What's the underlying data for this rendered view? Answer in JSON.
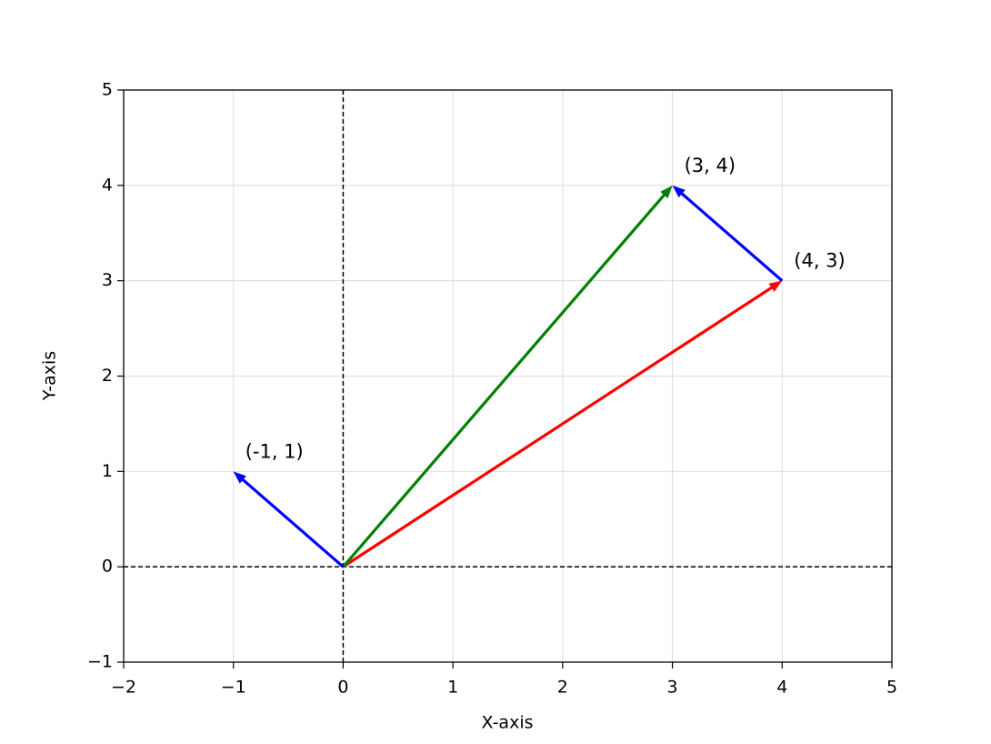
{
  "chart_data": {
    "type": "quiver",
    "x_label": "X-axis",
    "y_label": "Y-axis",
    "xlim": [
      -2,
      5
    ],
    "ylim": [
      -1,
      5
    ],
    "xticks": [
      {
        "value": -2,
        "label": "−2"
      },
      {
        "value": -1,
        "label": "−1"
      },
      0,
      1,
      2,
      3,
      4,
      5
    ],
    "yticks": [
      {
        "value": -1,
        "label": "−1"
      },
      0,
      1,
      2,
      3,
      4,
      5
    ],
    "grid": true,
    "hlines": [
      0
    ],
    "vlines": [
      0
    ],
    "vectors": [
      {
        "x0": 0,
        "y0": 0,
        "dx": 4,
        "dy": 3,
        "color": "red",
        "label": "(4, 3)"
      },
      {
        "x0": 0,
        "y0": 0,
        "dx": 3,
        "dy": 4,
        "color": "green",
        "label": "(3, 4)"
      },
      {
        "x0": 0,
        "y0": 0,
        "dx": -1,
        "dy": 1,
        "color": "blue",
        "label": "(-1, 1)"
      },
      {
        "x0": 4,
        "y0": 3,
        "dx": -1,
        "dy": 1,
        "color": "blue"
      }
    ]
  }
}
